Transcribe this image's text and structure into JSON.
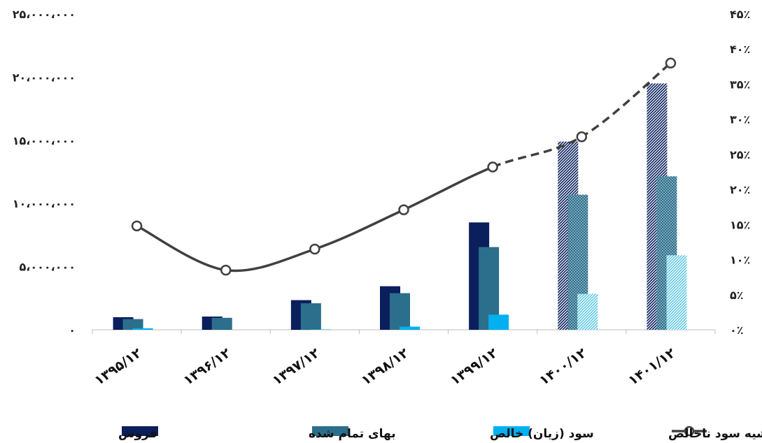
{
  "chart_data": {
    "type": "bar",
    "categories": [
      "۱۳۹۵/۱۲",
      "۱۳۹۶/۱۲",
      "۱۳۹۷/۱۲",
      "۱۳۹۸/۱۲",
      "۱۳۹۹/۱۲",
      "۱۴۰۰/۱۲",
      "۱۴۰۱/۱۲"
    ],
    "series": [
      {
        "name": "فروش",
        "kind": "bar",
        "axis": "left",
        "color": "#0b1f5c",
        "values": [
          1000000,
          1050000,
          2350000,
          3450000,
          8500000,
          14900000,
          19500000
        ],
        "estimated_pattern": [
          false,
          false,
          false,
          false,
          false,
          true,
          true
        ]
      },
      {
        "name": "بهای تمام شده",
        "kind": "bar",
        "axis": "left",
        "color": "#2b6f8c",
        "values": [
          850000,
          950000,
          2100000,
          2900000,
          6550000,
          10700000,
          12150000
        ],
        "estimated_pattern": [
          false,
          false,
          false,
          false,
          false,
          true,
          true
        ]
      },
      {
        "name": "سود (زیان) خالص",
        "kind": "bar",
        "axis": "left",
        "color": "#00b0f0",
        "values": [
          120000,
          0,
          30000,
          250000,
          1200000,
          2850000,
          5900000
        ],
        "estimated_pattern": [
          false,
          false,
          false,
          false,
          false,
          true,
          true
        ]
      },
      {
        "name": "حاشیه سود ناخالص",
        "kind": "line",
        "axis": "right",
        "color": "#404040",
        "values": [
          14.8,
          8.5,
          11.5,
          17.1,
          23.2,
          27.5,
          38.0
        ],
        "dashed_from_index": 4
      }
    ],
    "left_axis": {
      "ylim": [
        0,
        25000000
      ],
      "ticks": [
        "۰",
        "۵،۰۰۰،۰۰۰",
        "۱۰،۰۰۰،۰۰۰",
        "۱۵،۰۰۰،۰۰۰",
        "۲۰،۰۰۰،۰۰۰",
        "۲۵،۰۰۰،۰۰۰"
      ]
    },
    "right_axis": {
      "ylim": [
        0,
        45
      ],
      "ticks": [
        "۰٪",
        "۵٪",
        "۱۰٪",
        "۱۵٪",
        "۲۰٪",
        "۲۵٪",
        "۳۰٪",
        "۳۵٪",
        "۴۰٪",
        "۴۵٪"
      ]
    },
    "title": "",
    "xlabel": "",
    "ylabel": "",
    "grid": false,
    "legend": "bottom"
  }
}
